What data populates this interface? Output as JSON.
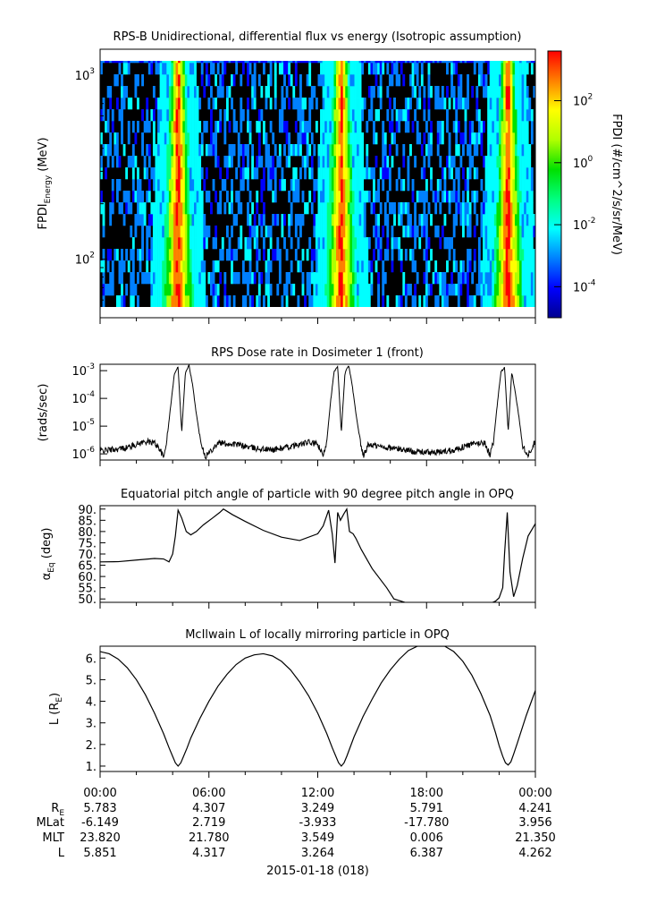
{
  "chart_data": [
    {
      "type": "heatmap",
      "title": "RPS-B  Unidirectional, differential flux vs energy (Isotropic assumption)",
      "ylabel": "FPDI",
      "ylabel_sub": "Energy",
      "ylabel_unit": " (MeV)",
      "y_scale": "log",
      "ylim": [
        55,
        1350
      ],
      "y_ticks": [
        {
          "value": 100,
          "base": "10",
          "exp": "2"
        },
        {
          "value": 1000,
          "base": "10",
          "exp": "3"
        }
      ],
      "xlim_hours": [
        0,
        24
      ],
      "colorbar": {
        "label": "FPDI (#/cm^2/s/sr/MeV)",
        "scale": "log",
        "range": [
          1e-05,
          4000
        ],
        "ticks": [
          {
            "value": 0.0001,
            "base": "10",
            "exp": "-4"
          },
          {
            "value": 0.01,
            "base": "10",
            "exp": "-2"
          },
          {
            "value": 1,
            "base": "10",
            "exp": "0"
          },
          {
            "value": 100,
            "base": "10",
            "exp": "2"
          }
        ],
        "colors": [
          "#00008f",
          "#0000ff",
          "#0080ff",
          "#00ffff",
          "#00ff80",
          "#00e000",
          "#b0ff00",
          "#ffff00",
          "#ff8000",
          "#ff0000"
        ]
      },
      "flux_peaks_hours": [
        4.3,
        13.3,
        22.5
      ]
    },
    {
      "type": "line",
      "title": "RPS  Dose rate in Dosimeter 1 (front)",
      "ylabel": "(rads/sec)",
      "y_scale": "log",
      "ylim": [
        6e-07,
        0.0017
      ],
      "y_ticks": [
        {
          "value": 1e-06,
          "base": "10",
          "exp": "-6"
        },
        {
          "value": 1e-05,
          "base": "10",
          "exp": "-5"
        },
        {
          "value": 0.0001,
          "base": "10",
          "exp": "-4"
        },
        {
          "value": 0.001,
          "base": "10",
          "exp": "-3"
        }
      ],
      "xlim_hours": [
        0,
        24
      ],
      "series": [
        {
          "x": [
            0,
            0.5,
            1,
            1.5,
            2,
            2.5,
            3,
            3.3,
            3.5,
            3.7,
            3.9,
            4.1,
            4.3,
            4.5,
            4.7,
            4.9,
            5.1,
            5.3,
            5.5,
            5.8,
            6.5,
            7.5,
            8.5,
            9.5,
            10.5,
            11.5,
            12.0,
            12.3,
            12.5,
            12.7,
            12.9,
            13.1,
            13.3,
            13.5,
            13.7,
            13.9,
            14.1,
            14.3,
            14.5,
            14.8,
            15.5,
            16.5,
            17.5,
            18.5,
            19.5,
            20.5,
            21.2,
            21.5,
            21.7,
            21.9,
            22.1,
            22.3,
            22.5,
            22.7,
            22.9,
            23.1,
            23.3,
            23.6,
            24.0
          ],
          "y": [
            1.3e-06,
            1.4e-06,
            1.5e-06,
            1.7e-06,
            2.2e-06,
            2.8e-06,
            2.5e-06,
            1.5e-06,
            7e-07,
            4e-06,
            6e-05,
            0.0008,
            0.0014,
            6e-06,
            0.0008,
            0.0016,
            0.0003,
            3e-05,
            4e-06,
            8e-07,
            2.5e-06,
            2.2e-06,
            1.6e-06,
            1.4e-06,
            1.8e-06,
            2.6e-06,
            2.2e-06,
            8e-07,
            3e-06,
            7e-05,
            0.0009,
            0.0014,
            6e-06,
            0.0008,
            0.0016,
            0.0003,
            3e-05,
            4e-06,
            8e-07,
            2.2e-06,
            1.8e-06,
            1.5e-06,
            1.2e-06,
            1.1e-06,
            1.4e-06,
            2.2e-06,
            2.6e-06,
            9e-07,
            3e-06,
            6e-05,
            0.0009,
            0.0013,
            6e-06,
            0.0009,
            0.00015,
            2e-05,
            2e-06,
            9e-07,
            3e-06
          ]
        }
      ]
    },
    {
      "type": "line",
      "title": "Equatorial pitch angle of particle with 90 degree pitch angle in OPQ",
      "ylabel": "α",
      "ylabel_sub": "Eq",
      "ylabel_unit": " (deg)",
      "ylim": [
        48.5,
        91.5
      ],
      "y_ticks": [
        "50.",
        "55.",
        "60.",
        "65.",
        "70.",
        "75.",
        "80.",
        "85.",
        "90."
      ],
      "xlim_hours": [
        0,
        24
      ],
      "series": [
        {
          "x": [
            0,
            1,
            2,
            3,
            3.5,
            3.8,
            4.0,
            4.15,
            4.3,
            4.5,
            4.75,
            5.0,
            5.3,
            5.7,
            6.2,
            6.6,
            6.8,
            7.3,
            8,
            9,
            10,
            11,
            12,
            12.3,
            12.6,
            12.8,
            12.95,
            13.1,
            13.25,
            13.45,
            13.6,
            13.75,
            13.95,
            14.1,
            14.4,
            15,
            15.8,
            16.2,
            17,
            18,
            19,
            20,
            21,
            21.5,
            21.8,
            22.0,
            22.2,
            22.3,
            22.45,
            22.6,
            22.8,
            23.0,
            23.3,
            23.6,
            24.0
          ],
          "y": [
            66.5,
            66.6,
            67.3,
            68,
            67.8,
            66.5,
            70,
            78,
            89.5,
            86,
            80,
            78.5,
            80,
            83,
            86,
            88.5,
            90,
            87.5,
            84.5,
            80.5,
            77.5,
            76,
            79,
            82.5,
            89.5,
            79,
            66,
            88.5,
            85,
            88,
            90,
            80,
            79,
            77,
            72,
            63.5,
            55,
            50,
            48,
            48,
            48,
            48,
            48,
            48,
            49,
            50.5,
            55,
            70,
            88.5,
            62,
            51,
            56,
            68,
            78,
            83.5
          ]
        }
      ]
    },
    {
      "type": "line",
      "title": "McIlwain L of locally mirroring particle in OPQ",
      "ylabel": "L (R",
      "ylabel_sub": "E",
      "ylabel_unit": ")",
      "ylim": [
        0.75,
        6.55
      ],
      "y_ticks": [
        "1.",
        "2.",
        "3.",
        "4.",
        "5.",
        "6."
      ],
      "xlim_hours": [
        0,
        24
      ],
      "series": [
        {
          "x": [
            0,
            0.5,
            1,
            1.5,
            2,
            2.5,
            3,
            3.5,
            3.8,
            4.0,
            4.15,
            4.3,
            4.45,
            4.6,
            4.8,
            5.0,
            5.5,
            6,
            6.5,
            7,
            7.5,
            8,
            8.5,
            9,
            9.5,
            10,
            10.5,
            11,
            11.5,
            12,
            12.5,
            12.8,
            13.0,
            13.15,
            13.3,
            13.45,
            13.6,
            13.8,
            14,
            14.5,
            15,
            15.5,
            16,
            16.5,
            17,
            17.5,
            18,
            18.5,
            19,
            19.5,
            20,
            20.5,
            21,
            21.5,
            21.8,
            22.0,
            22.2,
            22.35,
            22.5,
            22.65,
            22.8,
            23.0,
            23.5,
            24.0
          ],
          "y": [
            6.3,
            6.2,
            5.95,
            5.55,
            5.0,
            4.3,
            3.45,
            2.5,
            1.85,
            1.45,
            1.15,
            1.0,
            1.15,
            1.45,
            1.85,
            2.3,
            3.2,
            4.0,
            4.7,
            5.25,
            5.7,
            6.0,
            6.15,
            6.2,
            6.1,
            5.85,
            5.45,
            4.9,
            4.25,
            3.45,
            2.5,
            1.85,
            1.45,
            1.15,
            1.0,
            1.15,
            1.45,
            1.9,
            2.35,
            3.3,
            4.1,
            4.85,
            5.45,
            5.95,
            6.35,
            6.55,
            6.55,
            6.55,
            6.55,
            6.3,
            5.85,
            5.2,
            4.35,
            3.35,
            2.55,
            1.95,
            1.45,
            1.15,
            1.05,
            1.2,
            1.55,
            2.05,
            3.35,
            4.5
          ]
        }
      ]
    }
  ],
  "x_axis": {
    "tick_labels": [
      "00:00",
      "06:00",
      "12:00",
      "18:00",
      "00:00"
    ],
    "date_label": "2015-01-18 (018)"
  },
  "ephemeris": {
    "rows": [
      {
        "label": "R",
        "label_sub": "E",
        "values": [
          "5.783",
          "4.307",
          "3.249",
          "5.791",
          "4.241"
        ]
      },
      {
        "label": "MLat",
        "label_sub": "",
        "values": [
          "-6.149",
          "2.719",
          "-3.933",
          "-17.780",
          "3.956"
        ]
      },
      {
        "label": "MLT",
        "label_sub": "",
        "values": [
          "23.820",
          "21.780",
          "3.549",
          "0.006",
          "21.350"
        ]
      },
      {
        "label": "L",
        "label_sub": "",
        "values": [
          "5.851",
          "4.317",
          "3.264",
          "6.387",
          "4.262"
        ]
      }
    ]
  }
}
